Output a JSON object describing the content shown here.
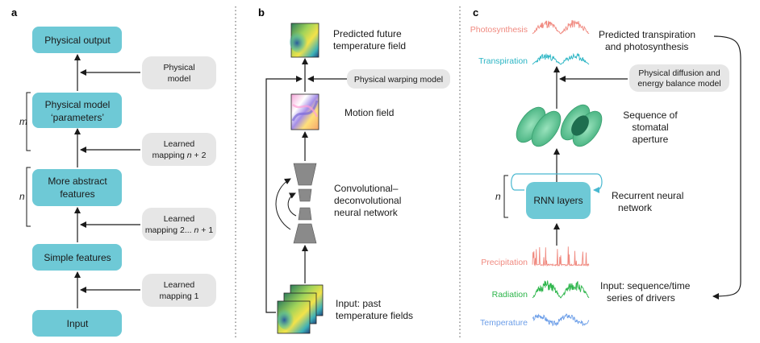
{
  "panels": {
    "a": {
      "letter": "a",
      "boxes": {
        "physical_output": "Physical output",
        "params_line1": "Physical model",
        "params_line2": "‘parameters’",
        "abstract_line1": "More abstract",
        "abstract_line2": "features",
        "simple": "Simple features",
        "input": "Input"
      },
      "side_boxes": {
        "physical_model_line1": "Physical",
        "physical_model_line2": "model",
        "lm_n2_line1": "Learned",
        "lm_n2_line2_prefix": "mapping ",
        "lm_n2_line2_var": "n",
        "lm_n2_line2_suffix": " + 2",
        "lm_2n1_line1": "Learned",
        "lm_2n1_line2_prefix": "mapping 2... ",
        "lm_2n1_line2_var": "n",
        "lm_2n1_line2_suffix": " + 1",
        "lm_1_line1": "Learned",
        "lm_1_line2": "mapping 1"
      },
      "brackets": {
        "m": "m",
        "n": "n"
      }
    },
    "b": {
      "letter": "b",
      "predicted_line1": "Predicted future",
      "predicted_line2": "temperature field",
      "warping": "Physical warping model",
      "motion": "Motion field",
      "conv_line1": "Convolutional–",
      "conv_line2": "deconvolutional",
      "conv_line3": "neural network",
      "input_line1": "Input: past",
      "input_line2": "temperature fields"
    },
    "c": {
      "letter": "c",
      "photosynthesis": "Photosynthesis",
      "transpiration": "Transpiration",
      "predicted_line1": "Predicted transpiration",
      "predicted_line2": "and photosynthesis",
      "diffusion_line1": "Physical diffusion and",
      "diffusion_line2": "energy balance model",
      "stomata_line1": "Sequence of",
      "stomata_line2": "stomatal",
      "stomata_line3": "aperture",
      "rnn": "RNN layers",
      "rnn_desc_line1": "Recurrent neural",
      "rnn_desc_line2": "network",
      "n_label": "n",
      "precipitation": "Precipitation",
      "radiation": "Radiation",
      "temperature": "Temperature",
      "input_line1": "Input: sequence/time",
      "input_line2": "series of drivers"
    }
  },
  "colors": {
    "box_teal": "#6ec9d6",
    "box_grey": "#e6e6e6",
    "photosynthesis": "#f08a80",
    "transpiration": "#2bb5c4",
    "precipitation": "#f08a80",
    "radiation": "#2cb54a",
    "temperature": "#6c9ee8",
    "stomata": "#6fcf9f"
  }
}
